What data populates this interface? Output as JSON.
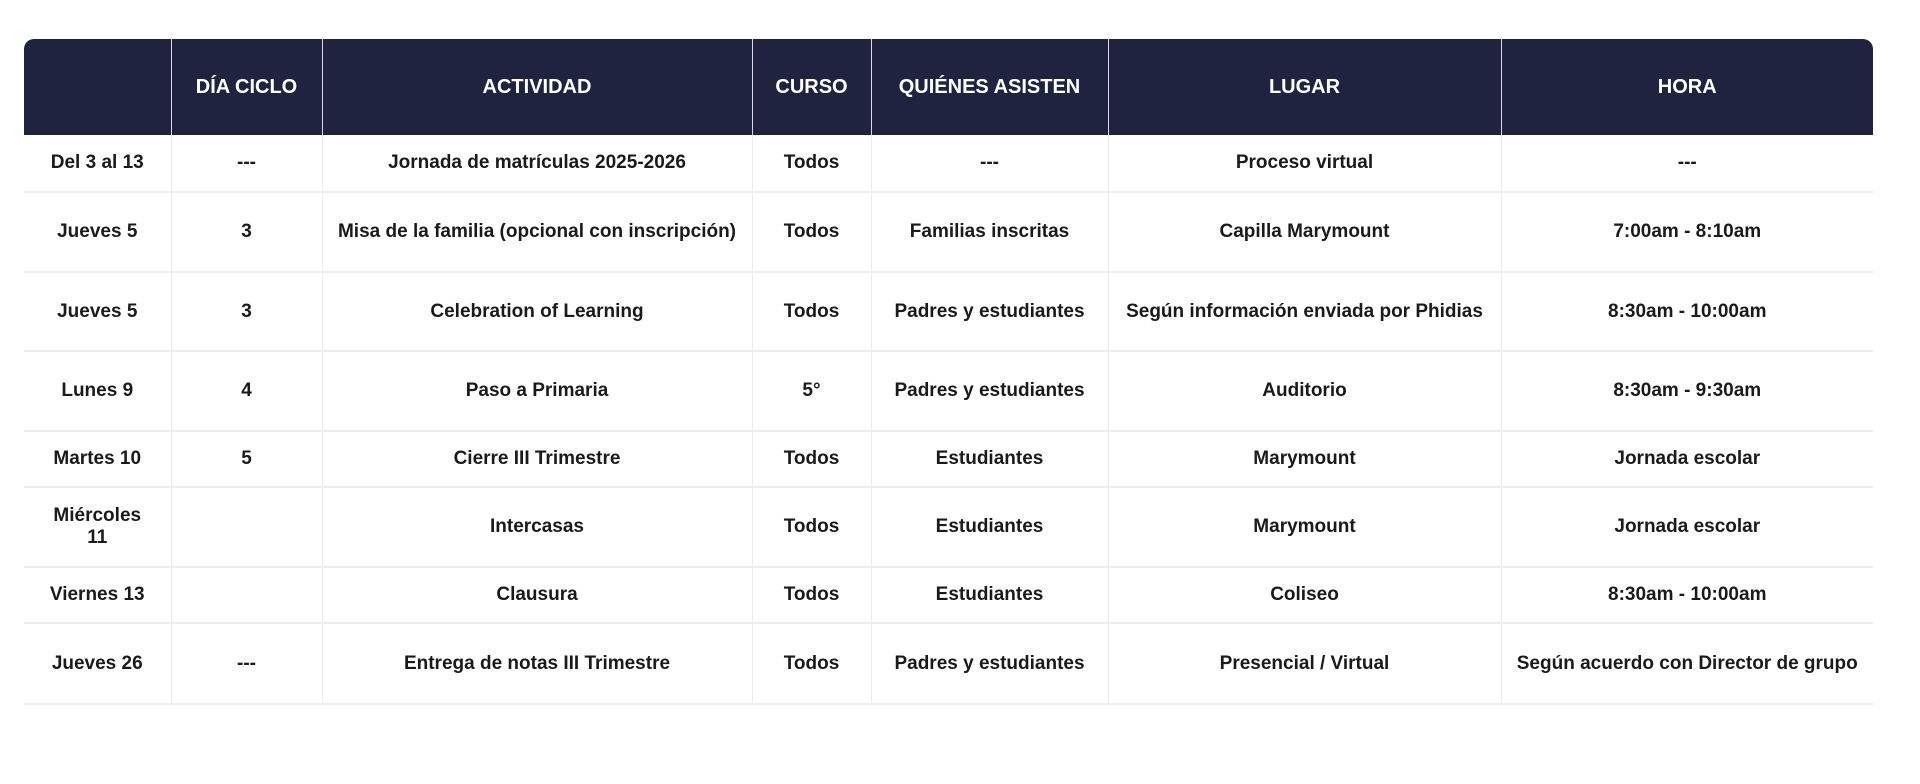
{
  "headers": [
    "",
    "DÍA CICLO",
    "ACTIVIDAD",
    "CURSO",
    "QUIÉNES ASISTEN",
    "LUGAR",
    "HORA"
  ],
  "rows": [
    [
      "Del 3 al 13",
      "---",
      "Jornada de matrículas 2025-2026",
      "Todos",
      "---",
      "Proceso virtual",
      "---"
    ],
    [
      "Jueves 5",
      "3",
      "Misa de la familia (opcional con inscripción)",
      "Todos",
      "Familias inscritas",
      "Capilla Marymount",
      "7:00am - 8:10am"
    ],
    [
      "Jueves 5",
      "3",
      "Celebration of Learning",
      "Todos",
      "Padres y estudiantes",
      "Según información enviada por Phidias",
      "8:30am - 10:00am"
    ],
    [
      "Lunes 9",
      "4",
      "Paso a Primaria",
      "5°",
      "Padres y estudiantes",
      "Auditorio",
      "8:30am - 9:30am"
    ],
    [
      "Martes 10",
      "5",
      "Cierre III Trimestre",
      "Todos",
      "Estudiantes",
      "Marymount",
      "Jornada escolar"
    ],
    [
      "Miércoles 11",
      "",
      "Intercasas",
      "Todos",
      "Estudiantes",
      "Marymount",
      "Jornada escolar"
    ],
    [
      "Viernes 13",
      "",
      "Clausura",
      "Todos",
      "Estudiantes",
      "Coliseo",
      "8:30am - 10:00am"
    ],
    [
      "Jueves 26",
      "---",
      "Entrega de notas III Trimestre",
      "Todos",
      "Padres y estudiantes",
      "Presencial / Virtual",
      "Según acuerdo con Director de grupo"
    ]
  ],
  "colors": {
    "header_bg": "#1f2340",
    "header_text": "#ffffff"
  }
}
